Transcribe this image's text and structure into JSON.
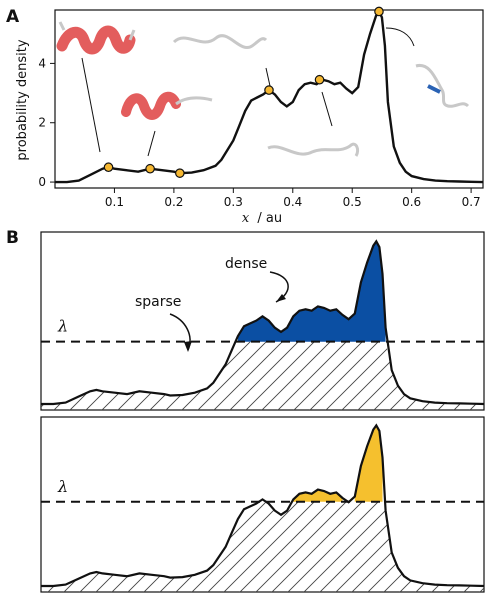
{
  "colors": {
    "curve": "#111111",
    "marker": "#f5b731",
    "dense": "#0b4fa3",
    "sparse_fill_hatch": "#444444",
    "high_density": "#f5c02e",
    "helix": "#e35d5d",
    "coil": "#c8c8c8"
  },
  "panels": {
    "a_label": "A",
    "b_label": "B"
  },
  "chart_data": [
    {
      "type": "line",
      "panel": "A",
      "xlabel_var": "x",
      "xlabel_unit": "/ au",
      "ylabel": "probability density",
      "xlim": [
        0.0,
        0.72
      ],
      "ylim": [
        -0.2,
        5.8
      ],
      "xticks": [
        "0.1",
        "0.2",
        "0.3",
        "0.4",
        "0.5",
        "0.6",
        "0.7"
      ],
      "yticks": [
        "0",
        "2",
        "4"
      ],
      "grid": false,
      "x": [
        0.0,
        0.02,
        0.04,
        0.06,
        0.08,
        0.09,
        0.1,
        0.12,
        0.14,
        0.16,
        0.18,
        0.2,
        0.21,
        0.23,
        0.25,
        0.27,
        0.28,
        0.3,
        0.31,
        0.32,
        0.33,
        0.34,
        0.35,
        0.36,
        0.37,
        0.38,
        0.39,
        0.4,
        0.41,
        0.42,
        0.43,
        0.44,
        0.45,
        0.46,
        0.47,
        0.48,
        0.49,
        0.5,
        0.51,
        0.52,
        0.53,
        0.54,
        0.545,
        0.55,
        0.555,
        0.56,
        0.57,
        0.58,
        0.59,
        0.6,
        0.62,
        0.64,
        0.66,
        0.68,
        0.7,
        0.72
      ],
      "y": [
        0.0,
        0.0,
        0.05,
        0.25,
        0.45,
        0.5,
        0.45,
        0.4,
        0.35,
        0.45,
        0.4,
        0.35,
        0.3,
        0.32,
        0.4,
        0.55,
        0.75,
        1.4,
        1.9,
        2.4,
        2.75,
        2.85,
        2.95,
        3.1,
        2.95,
        2.7,
        2.55,
        2.7,
        3.1,
        3.3,
        3.35,
        3.3,
        3.45,
        3.4,
        3.3,
        3.35,
        3.15,
        3.0,
        3.2,
        4.3,
        5.0,
        5.6,
        5.75,
        5.55,
        4.6,
        2.7,
        1.2,
        0.65,
        0.35,
        0.2,
        0.1,
        0.05,
        0.03,
        0.02,
        0.01,
        0.0
      ],
      "markers": [
        {
          "x": 0.09,
          "y": 0.5
        },
        {
          "x": 0.16,
          "y": 0.45
        },
        {
          "x": 0.21,
          "y": 0.3
        },
        {
          "x": 0.36,
          "y": 3.1
        },
        {
          "x": 0.445,
          "y": 3.45
        },
        {
          "x": 0.545,
          "y": 5.75
        }
      ]
    },
    {
      "type": "area",
      "panel": "B-top",
      "threshold_label": "λ",
      "threshold_fraction": 0.38,
      "annotations": [
        "dense",
        "sparse"
      ]
    },
    {
      "type": "area",
      "panel": "B-bottom",
      "threshold_label": "λ",
      "threshold_fraction": 0.52,
      "annotations": []
    }
  ]
}
